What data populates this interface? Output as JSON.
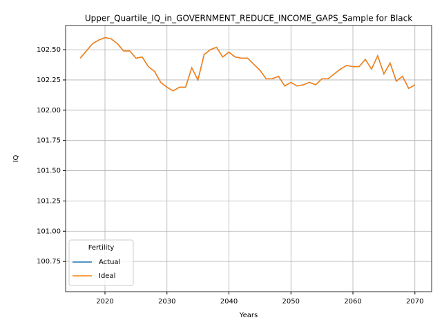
{
  "chart_data": {
    "type": "line",
    "title": "Upper_Quartile_IQ_in_GOVERNMENT_REDUCE_INCOME_GAPS_Sample for Black",
    "x_label": "Years",
    "y_label": "IQ",
    "x": [
      2016,
      2017,
      2018,
      2019,
      2020,
      2021,
      2022,
      2023,
      2024,
      2025,
      2026,
      2027,
      2028,
      2029,
      2030,
      2031,
      2032,
      2033,
      2034,
      2035,
      2036,
      2037,
      2038,
      2039,
      2040,
      2041,
      2042,
      2043,
      2044,
      2045,
      2046,
      2047,
      2048,
      2049,
      2050,
      2051,
      2052,
      2053,
      2054,
      2055,
      2056,
      2057,
      2058,
      2059,
      2060,
      2061,
      2062,
      2063,
      2064,
      2065,
      2066,
      2067,
      2068,
      2069,
      2070
    ],
    "series": [
      {
        "name": "Actual",
        "color": "#1f77b4",
        "values": [
          102.43,
          102.49,
          102.55,
          102.58,
          102.6,
          102.59,
          102.55,
          102.49,
          102.49,
          102.43,
          102.44,
          102.36,
          102.32,
          102.23,
          102.19,
          102.16,
          102.19,
          102.19,
          102.35,
          102.25,
          102.46,
          102.5,
          102.52,
          102.44,
          102.48,
          102.44,
          102.43,
          102.43,
          102.38,
          102.33,
          102.26,
          102.26,
          102.28,
          102.2,
          102.23,
          102.2,
          102.21,
          102.23,
          102.21,
          102.26,
          102.26,
          102.3,
          102.34,
          102.37,
          102.36,
          102.36,
          102.42,
          102.34,
          102.45,
          102.3,
          102.39,
          102.24,
          102.28,
          102.18,
          102.21
        ]
      },
      {
        "name": "Ideal",
        "color": "#ff7f0e",
        "values": [
          102.43,
          102.49,
          102.55,
          102.58,
          102.6,
          102.59,
          102.55,
          102.49,
          102.49,
          102.43,
          102.44,
          102.36,
          102.32,
          102.23,
          102.19,
          102.16,
          102.19,
          102.19,
          102.35,
          102.25,
          102.46,
          102.5,
          102.52,
          102.44,
          102.48,
          102.44,
          102.43,
          102.43,
          102.38,
          102.33,
          102.26,
          102.26,
          102.28,
          102.2,
          102.23,
          102.2,
          102.21,
          102.23,
          102.21,
          102.26,
          102.26,
          102.3,
          102.34,
          102.37,
          102.36,
          102.36,
          102.42,
          102.34,
          102.45,
          102.3,
          102.39,
          102.24,
          102.28,
          102.18,
          102.21
        ]
      }
    ],
    "xlim": [
      2013.65,
      2072.7
    ],
    "xticks": [
      2020,
      2030,
      2040,
      2050,
      2060,
      2070
    ],
    "ylim": [
      100.5,
      102.7
    ],
    "yticks": [
      100.75,
      {
        "value": 101.0,
        "label": "101.00"
      },
      101.25,
      {
        "value": 101.5,
        "label": "101.50"
      },
      101.75,
      {
        "value": 102.0,
        "label": "102.00"
      },
      102.25,
      {
        "value": 102.5,
        "label": "102.50"
      }
    ],
    "grid": true,
    "legend_title": "Fertility",
    "legend_position": "lower left"
  }
}
